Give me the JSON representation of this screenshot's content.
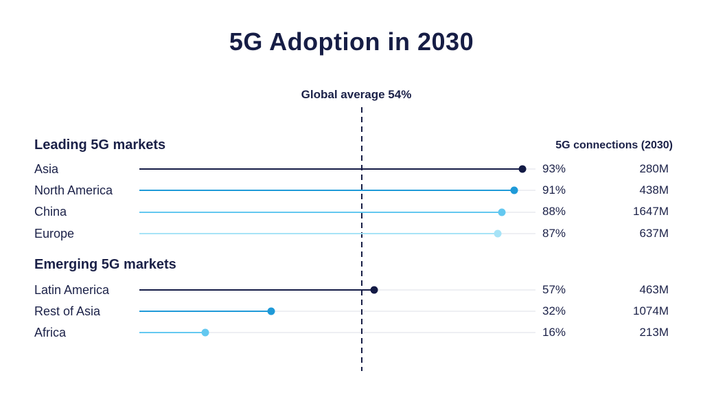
{
  "chart_data": {
    "type": "lollipop",
    "title": "5G Adoption in 2030",
    "average": {
      "label": "Global average 54%",
      "value": 54
    },
    "xlim": [
      0,
      100
    ],
    "connections_header": "5G connections (2030)",
    "groups": [
      {
        "label": "Leading 5G markets",
        "rows": [
          {
            "name": "Asia",
            "value": 93,
            "pct_label": "93%",
            "connections": "280M",
            "color": "#131a45"
          },
          {
            "name": "North America",
            "value": 91,
            "pct_label": "91%",
            "connections": "438M",
            "color": "#1f9ad8"
          },
          {
            "name": "China",
            "value": 88,
            "pct_label": "88%",
            "connections": "1647M",
            "color": "#63c8f0"
          },
          {
            "name": "Europe",
            "value": 87,
            "pct_label": "87%",
            "connections": "637M",
            "color": "#a6e3f7"
          }
        ]
      },
      {
        "label": "Emerging 5G markets",
        "rows": [
          {
            "name": "Latin America",
            "value": 57,
            "pct_label": "57%",
            "connections": "463M",
            "color": "#131a45"
          },
          {
            "name": "Rest of Asia",
            "value": 32,
            "pct_label": "32%",
            "connections": "1074M",
            "color": "#1f9ad8"
          },
          {
            "name": "Africa",
            "value": 16,
            "pct_label": "16%",
            "connections": "213M",
            "color": "#63c8f0"
          }
        ]
      }
    ]
  }
}
